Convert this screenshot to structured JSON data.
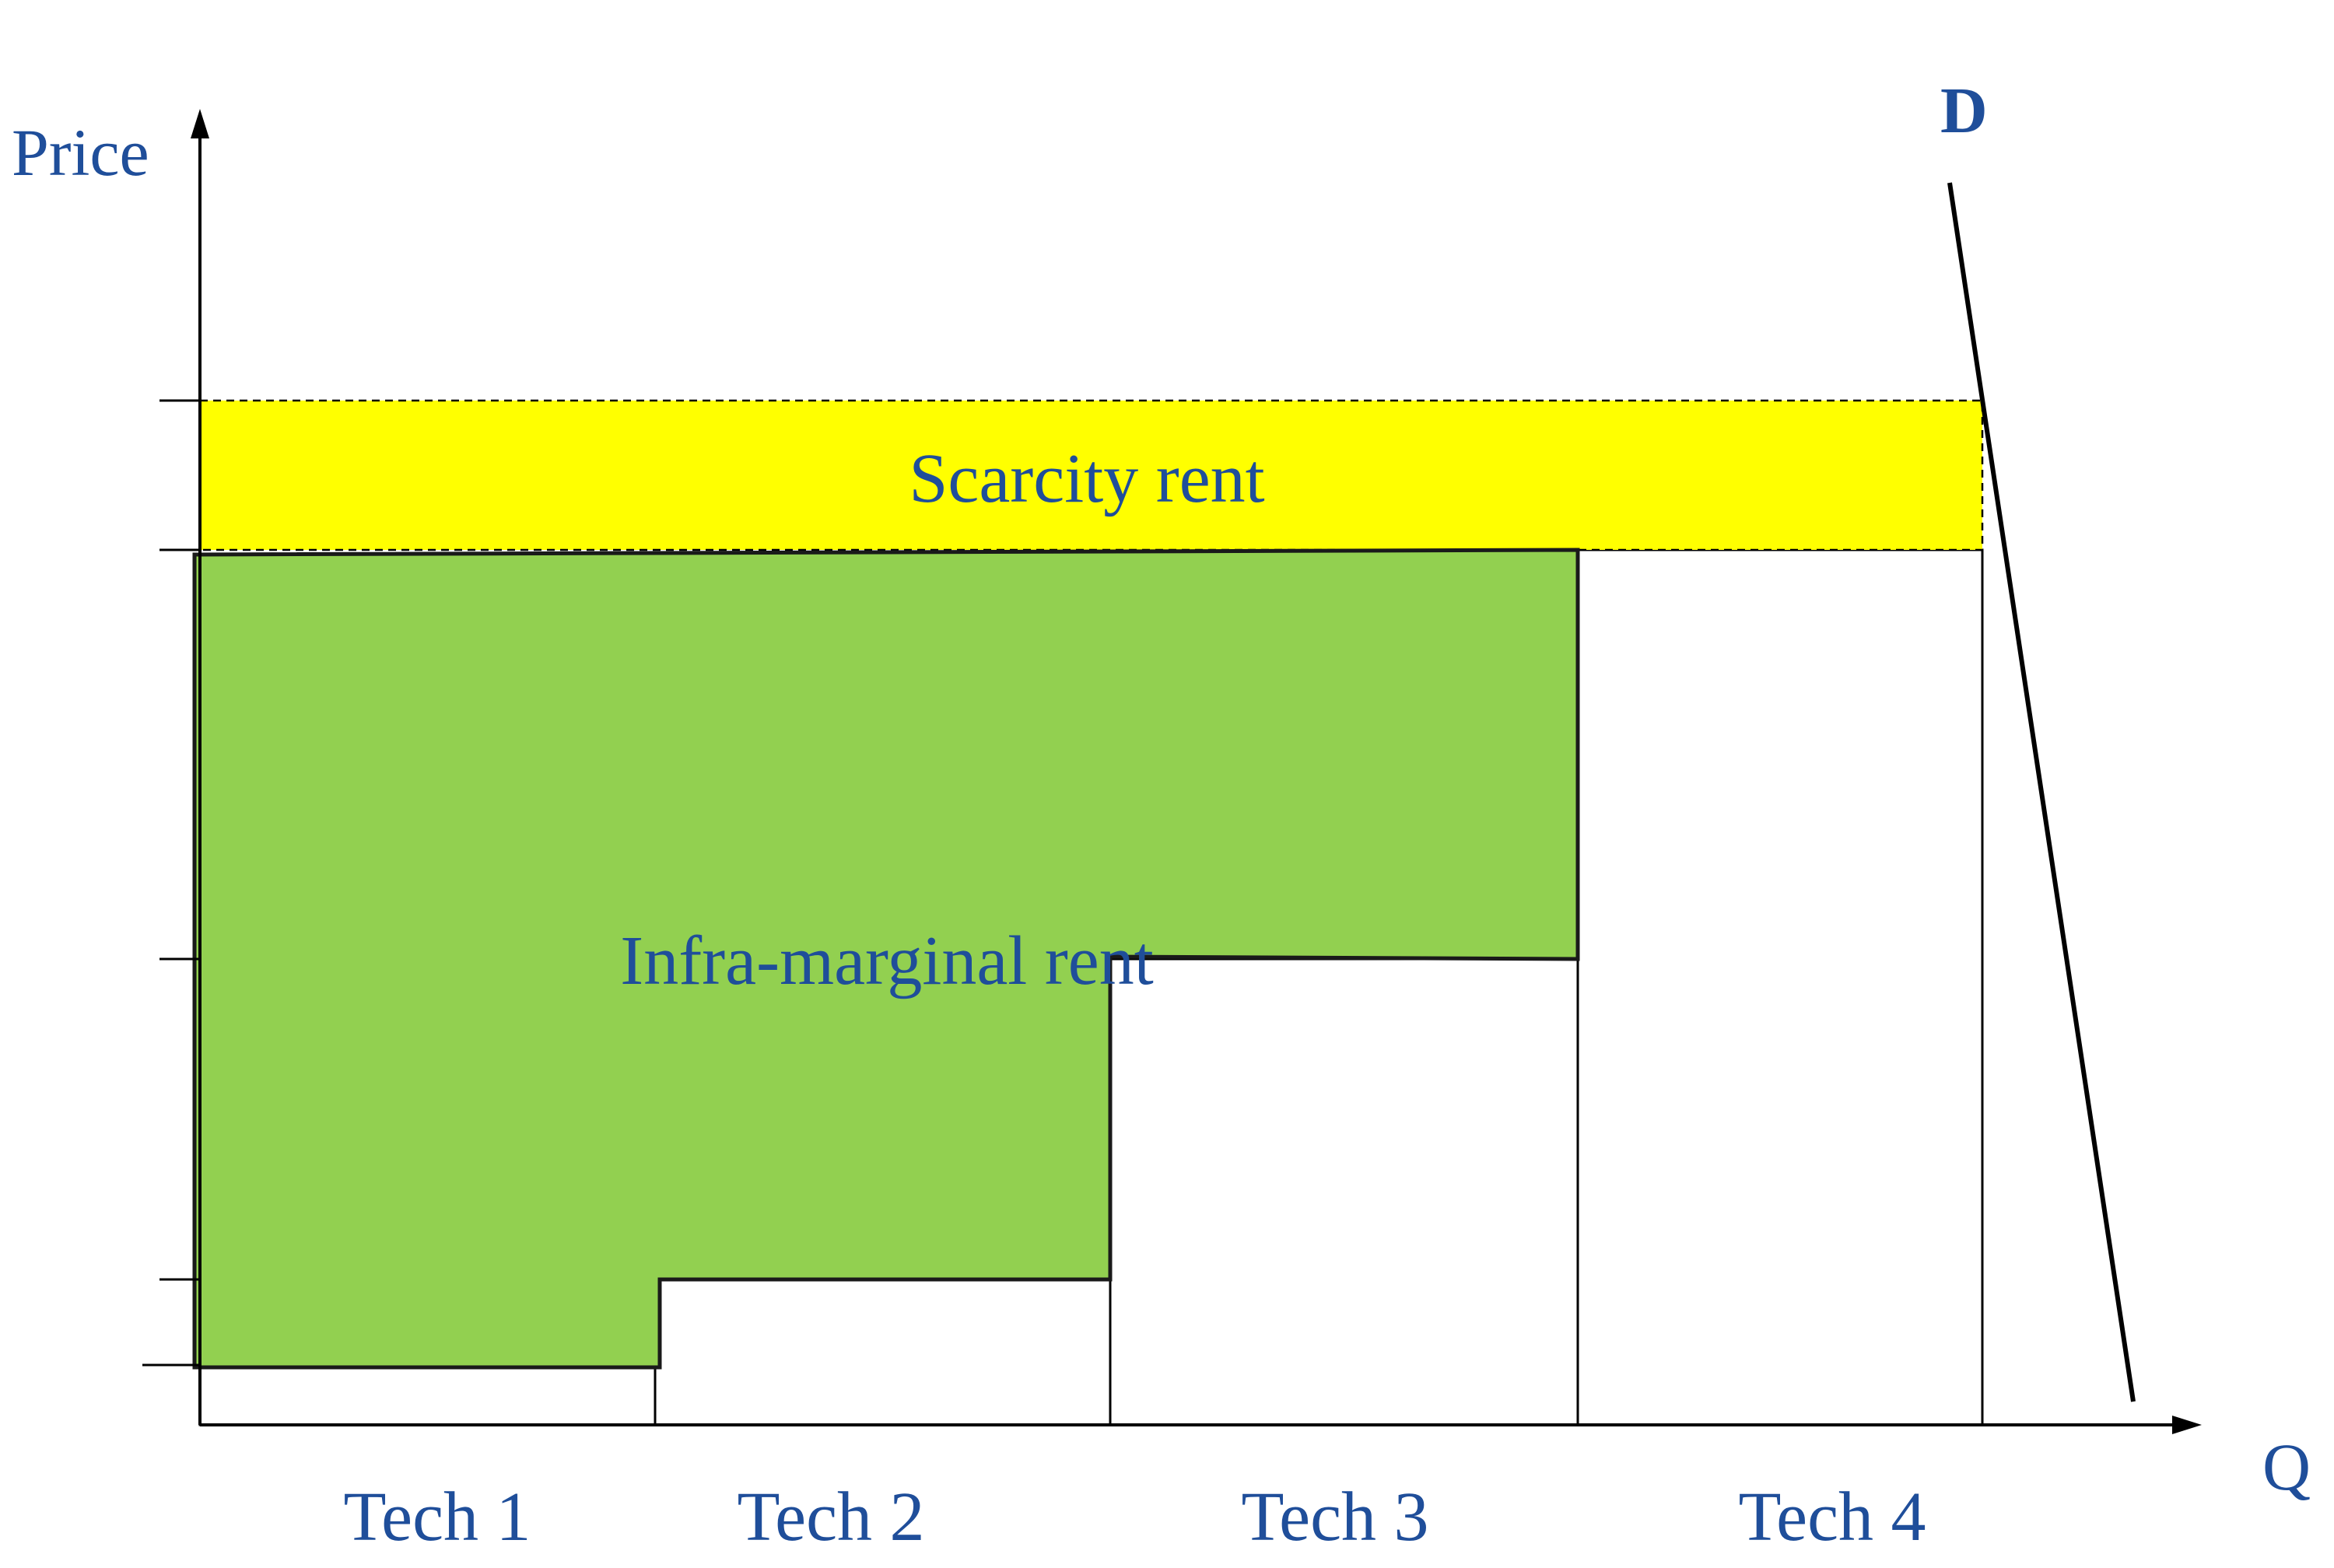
{
  "axes": {
    "y_label": "Price",
    "x_label": "Q"
  },
  "demand": {
    "label": "D"
  },
  "regions": {
    "scarcity_rent": "Scarcity rent",
    "inframarginal_rent": "Infra-marginal rent"
  },
  "technologies": [
    "Tech 1",
    "Tech 2",
    "Tech 3",
    "Tech 4"
  ],
  "colors": {
    "text": "#1F4E9A",
    "scarcity_fill": "#FFFF00",
    "inframarginal_fill": "#92D050",
    "line": "#000000"
  }
}
